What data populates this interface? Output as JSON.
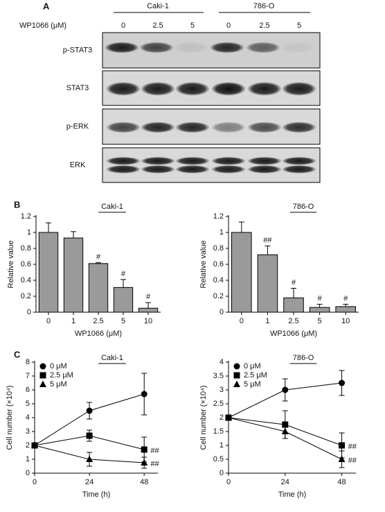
{
  "panels": [
    "A",
    "B",
    "C"
  ],
  "blot": {
    "treatment": "WP1066 (μM)",
    "groups": [
      {
        "name": "Caki-1",
        "doses": [
          "0",
          "2.5",
          "5"
        ]
      },
      {
        "name": "786-O",
        "doses": [
          "0",
          "2.5",
          "5"
        ]
      }
    ],
    "rows": [
      "p-STAT3",
      "STAT3",
      "p-ERK",
      "ERK"
    ]
  },
  "chart_data": [
    {
      "type": "bar",
      "title": "Caki-1",
      "x_label": "WP1066 (μM)",
      "y_label": "Relative value",
      "categories": [
        "0",
        "1",
        "2.5",
        "5",
        "10"
      ],
      "values": [
        1,
        0.93,
        0.61,
        0.31,
        0.05
      ],
      "errors": [
        0.12,
        0.08,
        0.01,
        0.1,
        0.07
      ],
      "notes": [
        null,
        null,
        "#",
        "#",
        "#"
      ],
      "color": "#9a9a9a",
      "ylim": [
        0,
        1.2
      ],
      "yticks": [
        0,
        0.2,
        0.4,
        0.6,
        0.8,
        1,
        1.2
      ]
    },
    {
      "type": "bar",
      "title": "786-O",
      "x_label": "WP1066 (μM)",
      "y_label": "Relative value",
      "categories": [
        "0",
        "1",
        "2.5",
        "5",
        "10"
      ],
      "values": [
        1,
        0.72,
        0.18,
        0.06,
        0.07
      ],
      "errors": [
        0.13,
        0.11,
        0.12,
        0.04,
        0.03
      ],
      "notes": [
        null,
        "##",
        "#",
        "#",
        "#"
      ],
      "color": "#9a9a9a",
      "ylim": [
        0,
        1.2
      ],
      "yticks": [
        0,
        0.2,
        0.4,
        0.6,
        0.8,
        1,
        1.2
      ]
    },
    {
      "type": "line",
      "title": "Caki-1",
      "x_label": "Time (h)",
      "y_label": "Cell number (×10⁴)",
      "x": [
        0,
        24,
        48
      ],
      "xlim": [
        0,
        54
      ],
      "xticks": [
        0,
        24,
        48
      ],
      "ylim": [
        0,
        8
      ],
      "yticks": [
        0,
        1,
        2,
        3,
        4,
        5,
        6,
        7,
        8
      ],
      "series": [
        {
          "name": "0 μM",
          "color": "#000",
          "marker": "circle",
          "values": [
            2,
            4.5,
            5.7
          ],
          "errors": [
            0,
            0.6,
            1.5
          ],
          "notes": [
            null,
            null,
            null
          ]
        },
        {
          "name": "2.5 μM",
          "color": "#000",
          "marker": "square",
          "values": [
            2,
            2.7,
            1.7
          ],
          "errors": [
            0,
            0.4,
            0.9
          ],
          "notes": [
            null,
            null,
            "##"
          ]
        },
        {
          "name": "5 μM",
          "color": "#000",
          "marker": "triangle",
          "values": [
            2,
            1,
            0.75
          ],
          "errors": [
            0,
            0.5,
            0.4
          ],
          "notes": [
            null,
            null,
            "##"
          ]
        }
      ]
    },
    {
      "type": "line",
      "title": "786-O",
      "x_label": "Time (h)",
      "y_label": "Cell number (×10⁴)",
      "x": [
        0,
        24,
        48
      ],
      "xlim": [
        0,
        54
      ],
      "xticks": [
        0,
        24,
        48
      ],
      "ylim": [
        0,
        4
      ],
      "yticks": [
        0,
        0.5,
        1,
        1.5,
        2,
        2.5,
        3,
        3.5,
        4
      ],
      "series": [
        {
          "name": "0 μM",
          "color": "#000",
          "marker": "circle",
          "values": [
            2,
            3,
            3.25
          ],
          "errors": [
            0,
            0.4,
            0.45
          ],
          "notes": [
            null,
            null,
            null
          ]
        },
        {
          "name": "2.5 μM",
          "color": "#000",
          "marker": "square",
          "values": [
            2,
            1.75,
            1
          ],
          "errors": [
            0,
            0.5,
            0.45
          ],
          "notes": [
            null,
            null,
            "##"
          ]
        },
        {
          "name": "5 μM",
          "color": "#000",
          "marker": "triangle",
          "values": [
            2,
            1.5,
            0.5
          ],
          "errors": [
            0,
            0.25,
            0.3
          ],
          "notes": [
            null,
            null,
            "##"
          ]
        }
      ]
    }
  ]
}
